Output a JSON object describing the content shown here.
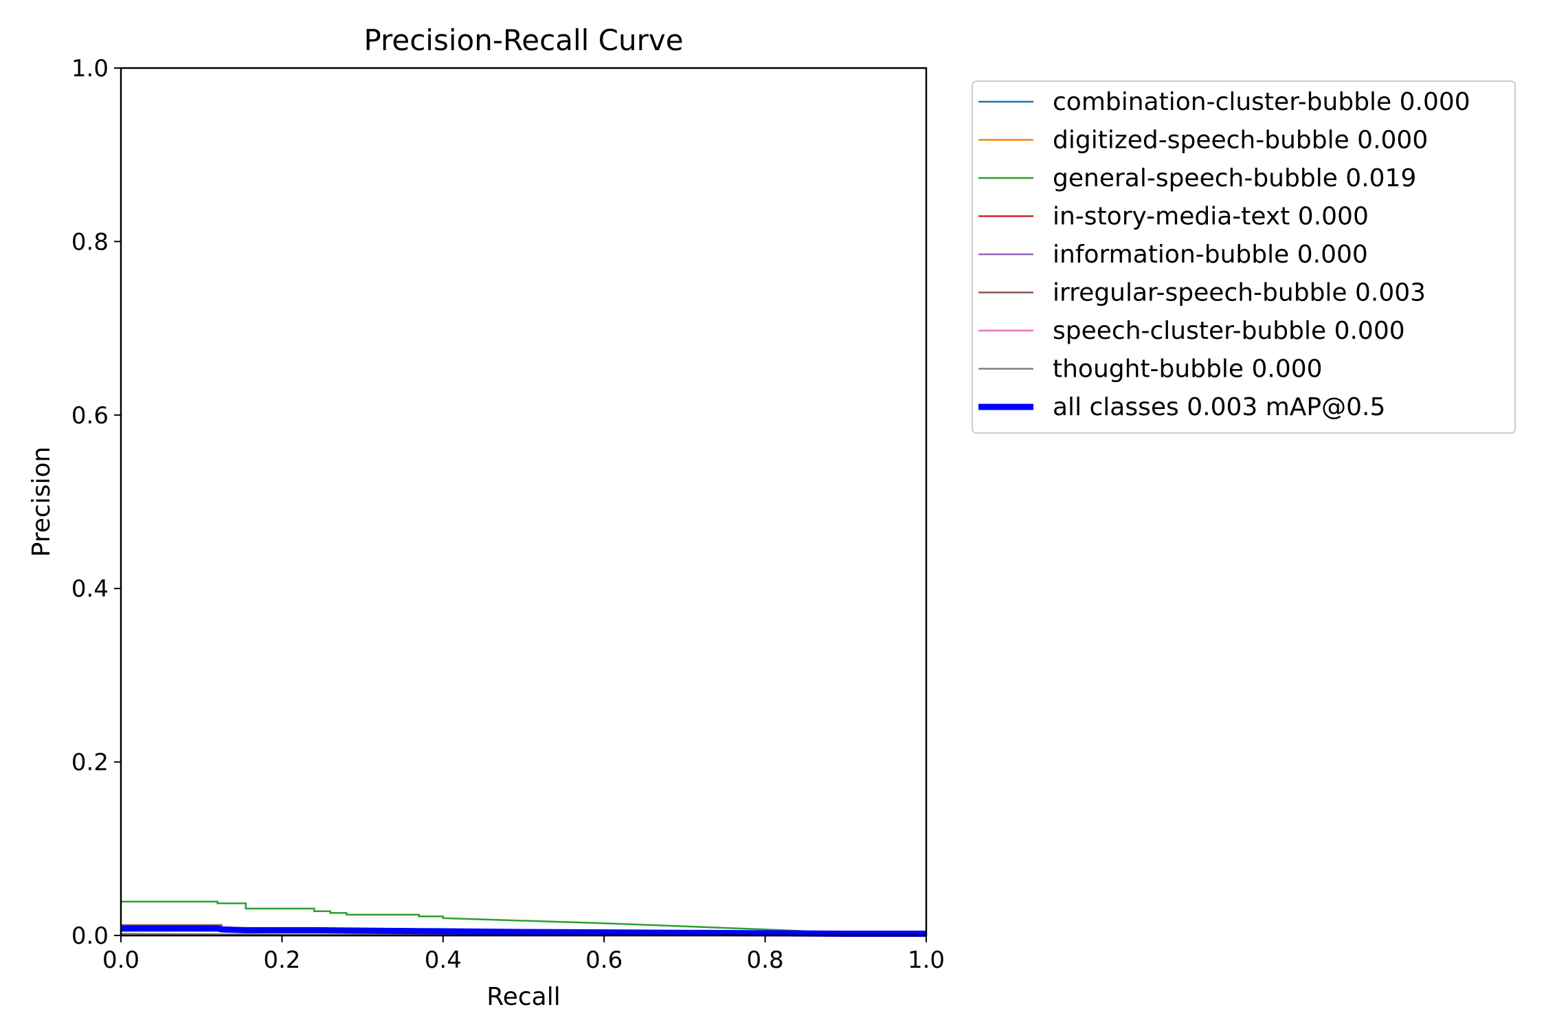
{
  "chart_data": {
    "type": "line",
    "title": "Precision-Recall Curve",
    "xlabel": "Recall",
    "ylabel": "Precision",
    "xlim": [
      0.0,
      1.0
    ],
    "ylim": [
      0.0,
      1.0
    ],
    "xticks": [
      "0.0",
      "0.2",
      "0.4",
      "0.6",
      "0.8",
      "1.0"
    ],
    "yticks": [
      "0.0",
      "0.2",
      "0.4",
      "0.6",
      "0.8",
      "1.0"
    ],
    "grid": false,
    "legend_position": "outside upper right",
    "series": [
      {
        "name": "combination-cluster-bubble 0.000",
        "color": "#1f77b4",
        "x": [
          0.0,
          1.0
        ],
        "y": [
          0.0,
          0.0
        ]
      },
      {
        "name": "digitized-speech-bubble 0.000",
        "color": "#ff7f0e",
        "x": [
          0.0,
          1.0
        ],
        "y": [
          0.0,
          0.0
        ]
      },
      {
        "name": "general-speech-bubble 0.019",
        "color": "#2ca02c",
        "x": [
          0.0,
          0.12,
          0.12,
          0.155,
          0.155,
          0.24,
          0.24,
          0.26,
          0.26,
          0.28,
          0.28,
          0.37,
          0.37,
          0.4,
          0.4,
          0.6,
          0.8,
          0.9,
          1.0
        ],
        "y": [
          0.039,
          0.039,
          0.037,
          0.037,
          0.031,
          0.031,
          0.028,
          0.028,
          0.026,
          0.026,
          0.024,
          0.024,
          0.022,
          0.022,
          0.02,
          0.014,
          0.007,
          0.003,
          0.002
        ]
      },
      {
        "name": "in-story-media-text 0.000",
        "color": "#d62728",
        "x": [
          0.0,
          1.0
        ],
        "y": [
          0.0,
          0.0
        ]
      },
      {
        "name": "information-bubble 0.000",
        "color": "#9467bd",
        "x": [
          0.0,
          1.0
        ],
        "y": [
          0.0,
          0.0
        ]
      },
      {
        "name": "irregular-speech-bubble 0.003",
        "color": "#8c564b",
        "x": [
          0.0,
          0.125,
          0.125,
          0.5,
          1.0
        ],
        "y": [
          0.012,
          0.012,
          0.008,
          0.006,
          0.002
        ]
      },
      {
        "name": "speech-cluster-bubble 0.000",
        "color": "#e377c2",
        "x": [
          0.0,
          1.0
        ],
        "y": [
          0.0,
          0.0
        ]
      },
      {
        "name": "thought-bubble 0.000",
        "color": "#7f7f7f",
        "x": [
          0.0,
          0.2,
          1.0
        ],
        "y": [
          0.002,
          0.001,
          0.0
        ]
      },
      {
        "name": "all classes 0.003 mAP@0.5",
        "color": "#0000ff",
        "bold": true,
        "x": [
          0.0,
          0.12,
          0.125,
          0.155,
          0.24,
          0.37,
          0.5,
          0.7,
          0.9,
          1.0
        ],
        "y": [
          0.008,
          0.008,
          0.007,
          0.006,
          0.006,
          0.005,
          0.004,
          0.003,
          0.002,
          0.002
        ]
      }
    ]
  }
}
